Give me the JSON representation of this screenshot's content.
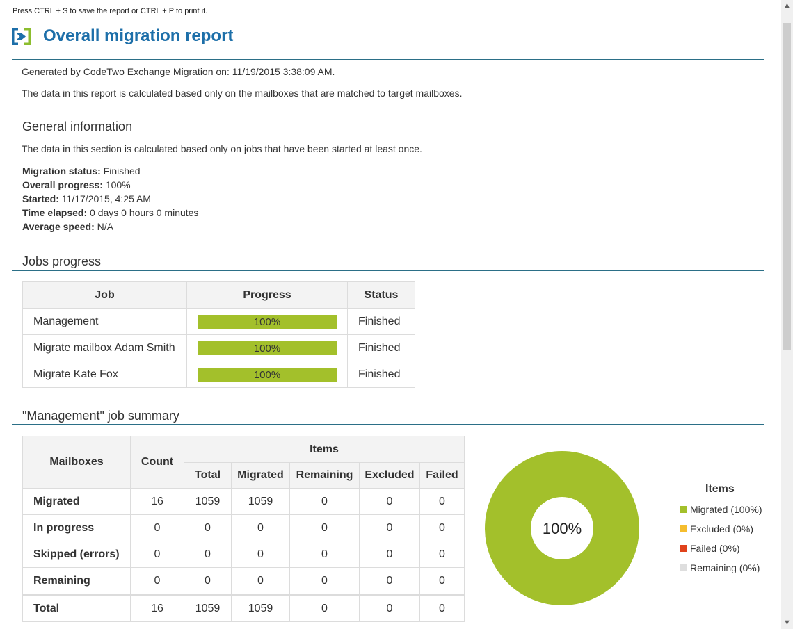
{
  "hint": "Press CTRL + S to save the report or CTRL + P to print it.",
  "title": "Overall migration report",
  "generated": "Generated by CodeTwo Exchange Migration on: 11/19/2015 3:38:09 AM.",
  "note": "The data in this report is calculated based only on the mailboxes that are matched to target mailboxes.",
  "general": {
    "heading": "General information",
    "note": "The data in this section is calculated based only on jobs that have been started at least once.",
    "fields": [
      {
        "label": "Migration status:",
        "value": "Finished"
      },
      {
        "label": "Overall progress:",
        "value": "100%"
      },
      {
        "label": "Started:",
        "value": "11/17/2015, 4:25 AM"
      },
      {
        "label": "Time elapsed:",
        "value": "0 days 0 hours 0 minutes"
      },
      {
        "label": "Average speed:",
        "value": "N/A"
      }
    ]
  },
  "jobs": {
    "heading": "Jobs progress",
    "columns": [
      "Job",
      "Progress",
      "Status"
    ],
    "rows": [
      {
        "job": "Management",
        "progress": 1.0,
        "progress_label": "100%",
        "status": "Finished"
      },
      {
        "job": "Migrate mailbox Adam Smith",
        "progress": 1.0,
        "progress_label": "100%",
        "status": "Finished"
      },
      {
        "job": "Migrate Kate Fox",
        "progress": 1.0,
        "progress_label": "100%",
        "status": "Finished"
      }
    ]
  },
  "summary": {
    "heading": "\"Management\" job summary",
    "head": {
      "mailboxes": "Mailboxes",
      "count": "Count",
      "items": "Items",
      "sub": [
        "Total",
        "Migrated",
        "Remaining",
        "Excluded",
        "Failed"
      ]
    },
    "rows": [
      {
        "label": "Migrated",
        "cells": [
          "16",
          "1059",
          "1059",
          "0",
          "0",
          "0"
        ]
      },
      {
        "label": "In progress",
        "cells": [
          "0",
          "0",
          "0",
          "0",
          "0",
          "0"
        ]
      },
      {
        "label": "Skipped (errors)",
        "cells": [
          "0",
          "0",
          "0",
          "0",
          "0",
          "0"
        ]
      },
      {
        "label": "Remaining",
        "cells": [
          "0",
          "0",
          "0",
          "0",
          "0",
          "0"
        ]
      }
    ],
    "total": {
      "label": "Total",
      "cells": [
        "16",
        "1059",
        "1059",
        "0",
        "0",
        "0"
      ]
    }
  },
  "chart": {
    "center_label": "100%",
    "legend_title": "Items",
    "legend": [
      {
        "label": "Migrated (100%)",
        "color": "#a3c02b"
      },
      {
        "label": "Excluded (0%)",
        "color": "#f5bd2e"
      },
      {
        "label": "Failed (0%)",
        "color": "#e0421b"
      },
      {
        "label": "Remaining (0%)",
        "color": "#dedede"
      }
    ]
  },
  "colors": {
    "accent": "#1d6fa9",
    "progress": "#a3c02b",
    "rule": "#2b6f87"
  },
  "icons": {
    "logo": "codetwo-logo-icon",
    "scroll_up": "chevron-up-icon",
    "scroll_down": "chevron-down-icon"
  }
}
